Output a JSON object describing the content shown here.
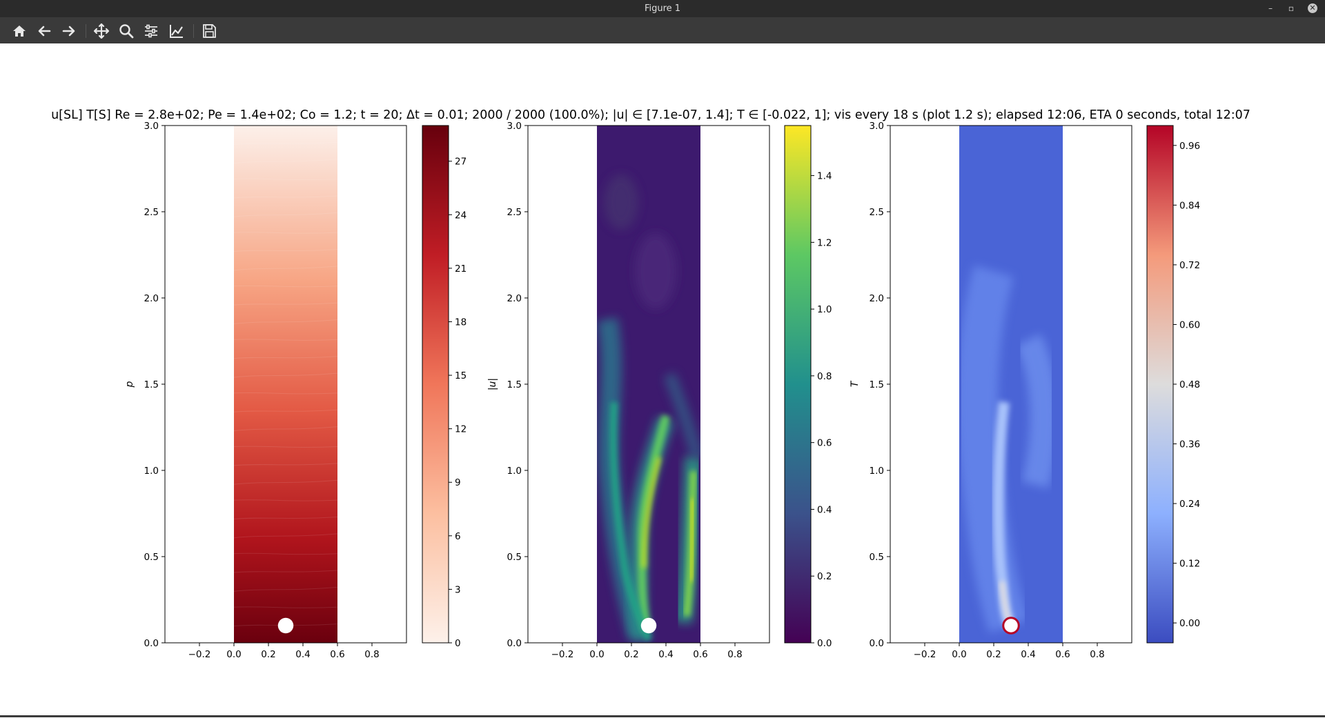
{
  "window": {
    "title": "Figure 1",
    "minimize_glyph": "–",
    "restore_glyph": "▫",
    "close_glyph": "✕"
  },
  "toolbar": {
    "buttons": [
      {
        "name": "home-button",
        "icon": "home-icon"
      },
      {
        "name": "back-button",
        "icon": "arrow-left-icon"
      },
      {
        "name": "forward-button",
        "icon": "arrow-right-icon"
      },
      {
        "name": "pan-button",
        "icon": "move-icon"
      },
      {
        "name": "zoom-button",
        "icon": "magnifier-icon"
      },
      {
        "name": "configure-subplots-button",
        "icon": "sliders-icon"
      },
      {
        "name": "edit-axis-button",
        "icon": "line-chart-icon"
      },
      {
        "name": "save-button",
        "icon": "floppy-icon"
      }
    ]
  },
  "figure": {
    "suptitle": "u[SL] T[S] Re = 2.8e+02; Pe = 1.4e+02; Co = 1.2; t = 20; Δt = 0.01; 2000 / 2000 (100.0%); |u| ∈ [7.1e-07, 1.4]; T ∈ [-0.022, 1]; vis every 18 s (plot 1.2 s); elapsed 12:06, ETA 0 seconds, total 12:07"
  },
  "chart_data": [
    {
      "type": "heatmap",
      "ylabel": "p",
      "xlim": [
        -0.4,
        1.0
      ],
      "ylim": [
        0.0,
        3.0
      ],
      "xticks": [
        "−0.2",
        "0.0",
        "0.2",
        "0.4",
        "0.6",
        "0.8"
      ],
      "xtick_values": [
        -0.2,
        0.0,
        0.2,
        0.4,
        0.6,
        0.8
      ],
      "yticks": [
        "0.0",
        "0.5",
        "1.0",
        "1.5",
        "2.0",
        "2.5",
        "3.0"
      ],
      "ytick_values": [
        0.0,
        0.5,
        1.0,
        1.5,
        2.0,
        2.5,
        3.0
      ],
      "domain": {
        "x": [
          0.0,
          0.6
        ],
        "y": [
          0.0,
          3.0
        ]
      },
      "obstacle": {
        "cx": 0.3,
        "cy": 0.1,
        "r": 0.045
      },
      "colormap": "Reds",
      "colorbar": {
        "range": [
          0,
          29
        ],
        "ticks": [
          "0",
          "3",
          "6",
          "9",
          "12",
          "15",
          "18",
          "21",
          "24",
          "27"
        ],
        "tick_values": [
          0,
          3,
          6,
          9,
          12,
          15,
          18,
          21,
          24,
          27
        ],
        "colors": [
          "#fdf1ea",
          "#67000d"
        ]
      }
    },
    {
      "type": "heatmap",
      "ylabel": "|u|",
      "xlim": [
        -0.4,
        1.0
      ],
      "ylim": [
        0.0,
        3.0
      ],
      "xticks": [
        "−0.2",
        "0.0",
        "0.2",
        "0.4",
        "0.6",
        "0.8"
      ],
      "xtick_values": [
        -0.2,
        0.0,
        0.2,
        0.4,
        0.6,
        0.8
      ],
      "yticks": [
        "0.0",
        "0.5",
        "1.0",
        "1.5",
        "2.0",
        "2.5",
        "3.0"
      ],
      "ytick_values": [
        0.0,
        0.5,
        1.0,
        1.5,
        2.0,
        2.5,
        3.0
      ],
      "domain": {
        "x": [
          0.0,
          0.6
        ],
        "y": [
          0.0,
          3.0
        ]
      },
      "obstacle": {
        "cx": 0.3,
        "cy": 0.1,
        "r": 0.045
      },
      "colormap": "viridis",
      "colorbar": {
        "range": [
          0.0,
          1.55
        ],
        "ticks": [
          "0.0",
          "0.2",
          "0.4",
          "0.6",
          "0.8",
          "1.0",
          "1.2",
          "1.4"
        ],
        "tick_values": [
          0.0,
          0.2,
          0.4,
          0.6,
          0.8,
          1.0,
          1.2,
          1.4
        ],
        "colors": [
          "#440154",
          "#fde725"
        ]
      }
    },
    {
      "type": "heatmap",
      "ylabel": "T",
      "xlim": [
        -0.4,
        1.0
      ],
      "ylim": [
        0.0,
        3.0
      ],
      "xticks": [
        "−0.2",
        "0.0",
        "0.2",
        "0.4",
        "0.6",
        "0.8"
      ],
      "xtick_values": [
        -0.2,
        0.0,
        0.2,
        0.4,
        0.6,
        0.8
      ],
      "yticks": [
        "0.0",
        "0.5",
        "1.0",
        "1.5",
        "2.0",
        "2.5",
        "3.0"
      ],
      "ytick_values": [
        0.0,
        0.5,
        1.0,
        1.5,
        2.0,
        2.5,
        3.0
      ],
      "domain": {
        "x": [
          0.0,
          0.6
        ],
        "y": [
          0.0,
          3.0
        ]
      },
      "obstacle": {
        "cx": 0.3,
        "cy": 0.1,
        "r": 0.045
      },
      "colormap": "coolwarm",
      "colorbar": {
        "range": [
          -0.04,
          1.0
        ],
        "ticks": [
          "0.00",
          "0.12",
          "0.24",
          "0.36",
          "0.48",
          "0.60",
          "0.72",
          "0.84",
          "0.96"
        ],
        "tick_values": [
          0.0,
          0.12,
          0.24,
          0.36,
          0.48,
          0.6,
          0.72,
          0.84,
          0.96
        ],
        "colors": [
          "#3b4cc0",
          "#b40426"
        ]
      }
    }
  ]
}
